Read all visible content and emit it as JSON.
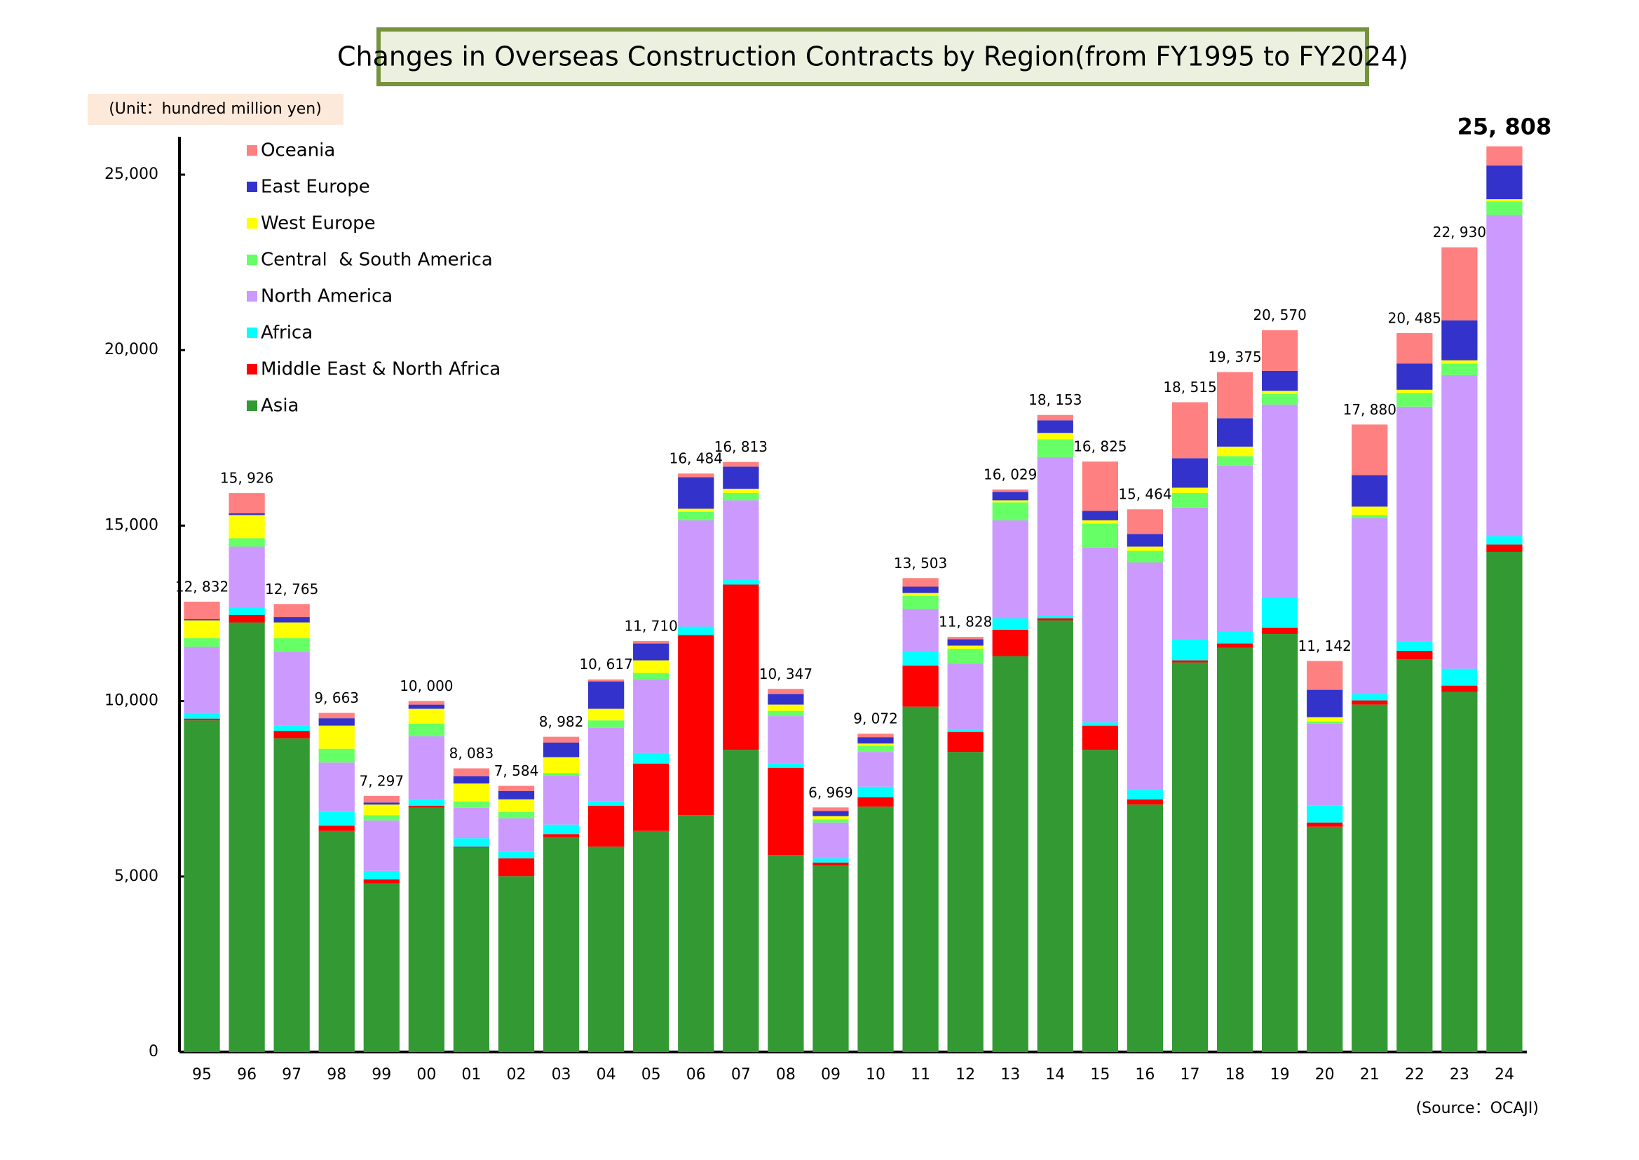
{
  "chart_data": {
    "type": "stacked_bar",
    "title": "Changes in Overseas Construction Contracts by Region(from FY1995 to FY2024)",
    "unit_label": "(Unit：hundred million yen)",
    "source": "(Source：OCAJI)",
    "categories": [
      "95",
      "96",
      "97",
      "98",
      "99",
      "00",
      "01",
      "02",
      "03",
      "04",
      "05",
      "06",
      "07",
      "08",
      "09",
      "10",
      "11",
      "12",
      "13",
      "14",
      "15",
      "16",
      "17",
      "18",
      "19",
      "20",
      "21",
      "22",
      "23",
      "24"
    ],
    "series": [
      {
        "name": "Asia",
        "color": "#339933",
        "values": [
          9450,
          12240,
          8940,
          6300,
          4800,
          6960,
          5820,
          5010,
          6120,
          5850,
          6300,
          6750,
          8610,
          5610,
          5310,
          6990,
          9840,
          8550,
          11280,
          12300,
          8610,
          7050,
          11100,
          11520,
          11910,
          6420,
          9900,
          11190,
          10260,
          14250
        ]
      },
      {
        "name": "Middle East & North Africa",
        "color": "#ff0000",
        "values": [
          50,
          210,
          210,
          150,
          120,
          60,
          30,
          510,
          90,
          1170,
          1920,
          5130,
          4710,
          2490,
          90,
          270,
          1170,
          570,
          750,
          60,
          690,
          150,
          60,
          120,
          180,
          120,
          120,
          240,
          180,
          210
        ]
      },
      {
        "name": "Africa",
        "color": "#00ffff",
        "values": [
          160,
          210,
          150,
          390,
          240,
          180,
          240,
          180,
          270,
          120,
          300,
          240,
          150,
          120,
          120,
          300,
          390,
          60,
          330,
          90,
          90,
          270,
          600,
          330,
          870,
          480,
          180,
          270,
          480,
          240
        ]
      },
      {
        "name": "North America",
        "color": "#cc99ff",
        "values": [
          1890,
          1740,
          2100,
          1410,
          1440,
          1800,
          870,
          960,
          1410,
          2100,
          2100,
          3030,
          2250,
          1350,
          1020,
          990,
          1230,
          1890,
          2790,
          4500,
          4980,
          6480,
          3750,
          4740,
          5490,
          2340,
          5010,
          6690,
          8370,
          9150
        ]
      },
      {
        "name": "Central  & South America",
        "color": "#66ff66",
        "values": [
          240,
          240,
          390,
          390,
          150,
          360,
          180,
          180,
          60,
          210,
          180,
          240,
          210,
          150,
          90,
          180,
          360,
          420,
          510,
          510,
          690,
          330,
          420,
          270,
          300,
          60,
          90,
          390,
          330,
          390
        ]
      },
      {
        "name": "West Europe",
        "color": "#ffff00",
        "values": [
          510,
          660,
          450,
          660,
          300,
          420,
          510,
          360,
          450,
          330,
          360,
          90,
          120,
          180,
          90,
          60,
          90,
          90,
          60,
          180,
          90,
          120,
          150,
          270,
          90,
          120,
          240,
          90,
          90,
          60
        ]
      },
      {
        "name": "East Europe",
        "color": "#3333cc",
        "values": [
          30,
          50,
          150,
          210,
          60,
          120,
          210,
          240,
          420,
          780,
          480,
          900,
          630,
          300,
          150,
          180,
          180,
          180,
          240,
          360,
          270,
          360,
          840,
          810,
          570,
          780,
          900,
          750,
          1140,
          960
        ]
      },
      {
        "name": "Oceania",
        "color": "#ff8080",
        "values": [
          502,
          576,
          375,
          153,
          187,
          100,
          223,
          144,
          162,
          57,
          70,
          104,
          133,
          147,
          99,
          102,
          243,
          68,
          69,
          153,
          1405,
          704,
          1595,
          1315,
          1160,
          822,
          1440,
          865,
          2080,
          548
        ]
      }
    ],
    "totals": [
      12832,
      15926,
      12765,
      9663,
      7297,
      10000,
      8083,
      7584,
      8982,
      10617,
      11710,
      16484,
      16813,
      10347,
      6969,
      9072,
      13503,
      11828,
      16029,
      18153,
      16825,
      15464,
      18515,
      19375,
      20570,
      11142,
      17880,
      20485,
      22930,
      25808
    ],
    "total_labels": [
      "12, 832",
      "15, 926",
      "12, 765",
      "9, 663",
      "7, 297",
      "10, 000",
      "8, 083",
      "7, 584",
      "8, 982",
      "10, 617",
      "11, 710",
      "16, 484",
      "16, 813",
      "10, 347",
      "6, 969",
      "9, 072",
      "13, 503",
      "11, 828",
      "16, 029",
      "18, 153",
      "16, 825",
      "15, 464",
      "18, 515",
      "19, 375",
      "20, 570",
      "11, 142",
      "17, 880",
      "20, 485",
      "22, 930",
      "25, 808"
    ],
    "ylim": [
      0,
      26000
    ],
    "yticks": [
      0,
      {
        "value": 5000,
        "label": "5,000"
      },
      {
        "value": 10000,
        "label": "10,000"
      },
      {
        "value": 15000,
        "label": "15,000"
      },
      {
        "value": 20000,
        "label": "20,000"
      },
      {
        "value": 25000,
        "label": "25,000"
      }
    ],
    "legend_position": "upper left"
  }
}
